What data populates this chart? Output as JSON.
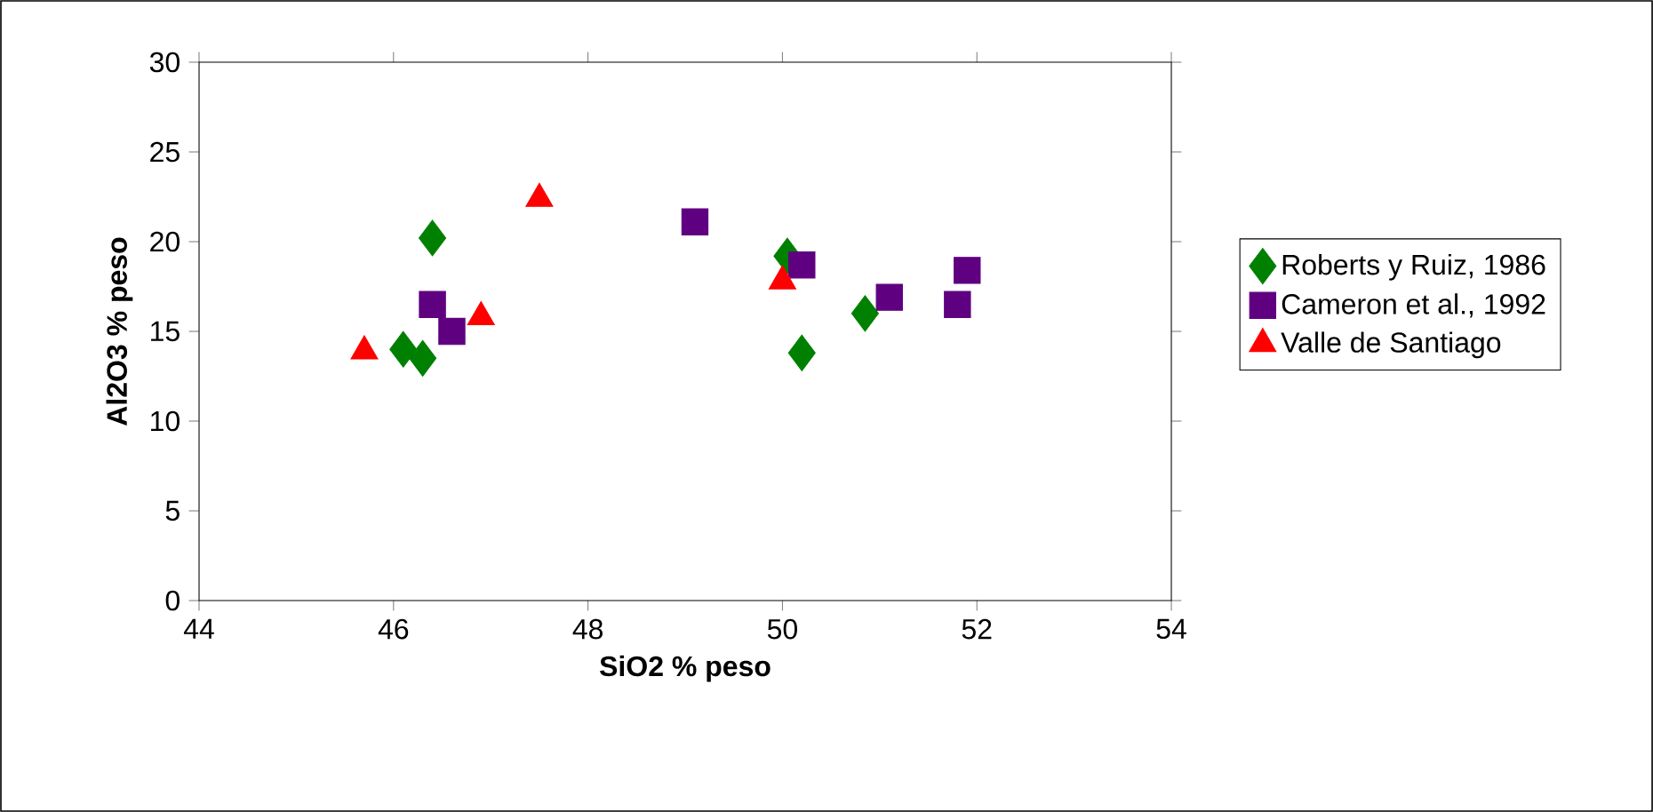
{
  "chart_data": {
    "type": "scatter",
    "xlabel": "SiO2 % peso",
    "ylabel": "Al2O3 % peso",
    "xlim": [
      44,
      54
    ],
    "xticks": [
      44,
      46,
      48,
      50,
      52,
      54
    ],
    "ylim": [
      0,
      30
    ],
    "yticks": [
      0,
      5,
      10,
      15,
      20,
      25,
      30
    ],
    "grid": false,
    "legend": "right",
    "series": [
      {
        "name": "Roberts y Ruiz, 1986",
        "color": "#008000",
        "marker": "diamond",
        "x": [
          46.1,
          46.3,
          46.4,
          50.05,
          50.2,
          50.85
        ],
        "values": [
          14.0,
          13.5,
          20.2,
          19.2,
          13.8,
          16.0
        ]
      },
      {
        "name": "Cameron et al., 1992",
        "color": "#5f0080",
        "marker": "square",
        "x": [
          46.4,
          46.6,
          49.1,
          50.2,
          51.1,
          51.8,
          51.9
        ],
        "values": [
          16.5,
          15.0,
          21.1,
          18.7,
          16.9,
          16.5,
          18.4
        ]
      },
      {
        "name": "Valle de Santiago",
        "color": "#ff0000",
        "marker": "triangle",
        "x": [
          45.7,
          46.9,
          47.5,
          50.0
        ],
        "values": [
          13.9,
          15.8,
          22.4,
          17.8
        ]
      }
    ]
  }
}
